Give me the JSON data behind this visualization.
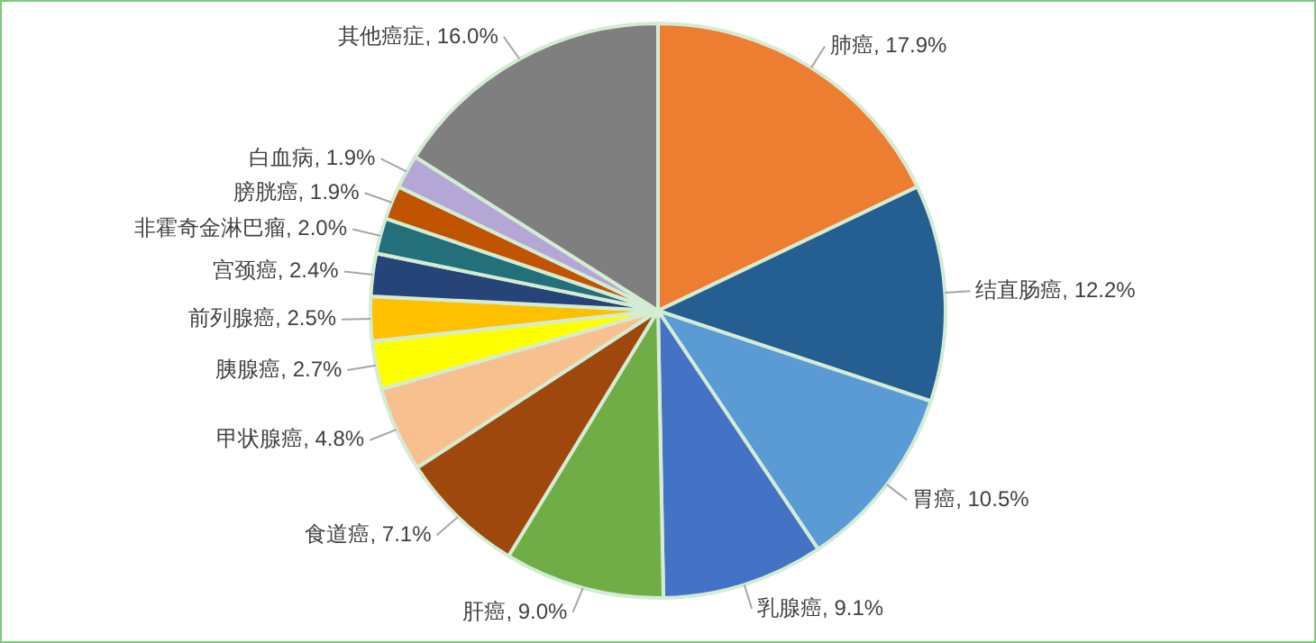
{
  "chart_data": {
    "type": "pie",
    "categories": [
      "肺癌",
      "结直肠癌",
      "胃癌",
      "乳腺癌",
      "肝癌",
      "食道癌",
      "甲状腺癌",
      "胰腺癌",
      "前列腺癌",
      "宫颈癌",
      "非霍奇金淋巴瘤",
      "膀胱癌",
      "白血病",
      "其他癌症"
    ],
    "values": [
      17.9,
      12.2,
      10.5,
      9.1,
      9.0,
      7.1,
      4.8,
      2.7,
      2.5,
      2.4,
      2.0,
      1.9,
      1.9,
      16.0
    ],
    "value_labels": [
      "17.9%",
      "12.2%",
      "10.5%",
      "9.1%",
      "9.0%",
      "7.1%",
      "4.8%",
      "2.7%",
      "2.5%",
      "2.4%",
      "2.0%",
      "1.9%",
      "1.9%",
      "16.0%"
    ],
    "colors": [
      "#ed7d31",
      "#255e91",
      "#5b9bd5",
      "#4472c4",
      "#70ad47",
      "#9e480e",
      "#f8c08f",
      "#ffff00",
      "#ffc000",
      "#264478",
      "#23707a",
      "#c05400",
      "#b4a7d6",
      "#7f7f7f"
    ],
    "legend": false
  }
}
